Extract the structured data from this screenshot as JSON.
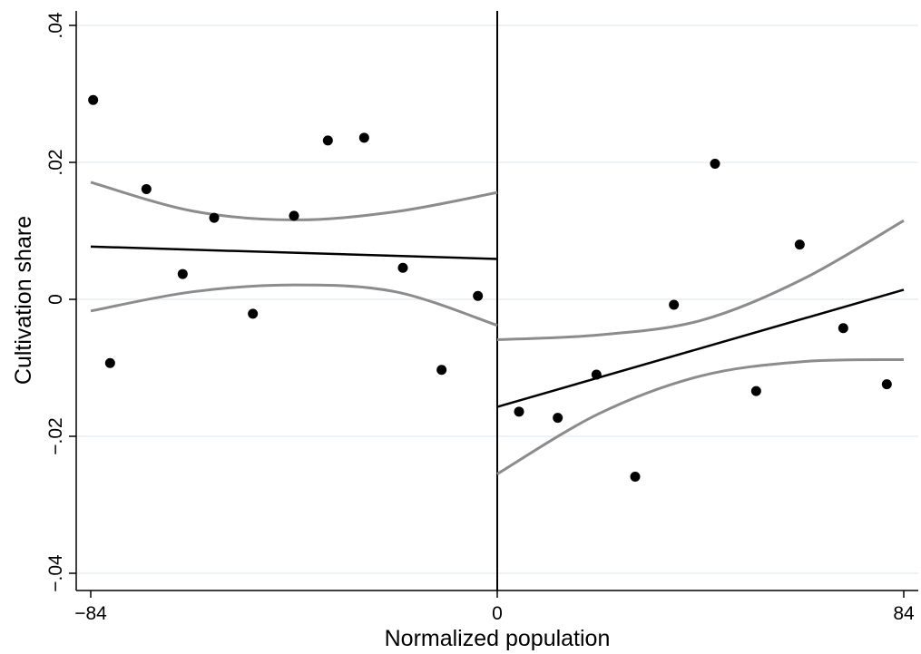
{
  "chart_data": {
    "type": "scatter",
    "title": "",
    "xlabel": "Normalized population",
    "ylabel": "Cultivation share",
    "xlim": [
      -84,
      84
    ],
    "ylim": [
      -0.04,
      0.04
    ],
    "x_ticks": [
      -84,
      0,
      84
    ],
    "x_tick_labels": [
      "−84",
      "0",
      "84"
    ],
    "y_ticks": [
      -0.04,
      -0.02,
      0,
      0.02,
      0.04
    ],
    "y_tick_labels": [
      "−.04",
      "−.02",
      "0",
      ".02",
      ".04"
    ],
    "grid": true,
    "cutoff_x": 0,
    "points": [
      {
        "x": -83.5,
        "y": 0.0291
      },
      {
        "x": -80,
        "y": -0.0093
      },
      {
        "x": -72.5,
        "y": 0.0161
      },
      {
        "x": -65,
        "y": 0.0037
      },
      {
        "x": -58.5,
        "y": 0.0119
      },
      {
        "x": -50.5,
        "y": -0.0021
      },
      {
        "x": -42,
        "y": 0.0122
      },
      {
        "x": -35,
        "y": 0.0232
      },
      {
        "x": -27.5,
        "y": 0.0236
      },
      {
        "x": -19.5,
        "y": 0.0046
      },
      {
        "x": -11.5,
        "y": -0.0103
      },
      {
        "x": -4,
        "y": 0.0005
      },
      {
        "x": 4.5,
        "y": -0.0164
      },
      {
        "x": 12.5,
        "y": -0.0173
      },
      {
        "x": 20.5,
        "y": -0.011
      },
      {
        "x": 28.5,
        "y": -0.0259
      },
      {
        "x": 36.5,
        "y": -0.0008
      },
      {
        "x": 45,
        "y": 0.0198
      },
      {
        "x": 53.5,
        "y": -0.0134
      },
      {
        "x": 62.5,
        "y": 0.008
      },
      {
        "x": 71.5,
        "y": -0.0042
      },
      {
        "x": 80.5,
        "y": -0.0124
      }
    ],
    "fits": [
      {
        "x": [
          -84,
          0
        ],
        "y": [
          0.0077,
          0.0059
        ]
      },
      {
        "x": [
          0,
          84
        ],
        "y": [
          -0.0157,
          0.0014
        ]
      }
    ],
    "ci_bands": [
      {
        "x": [
          -84,
          -63,
          -42,
          -21,
          0
        ],
        "upper": [
          0.0171,
          0.0129,
          0.0116,
          0.0128,
          0.0156
        ],
        "lower": [
          -0.0017,
          0.0011,
          0.0021,
          0.0011,
          -0.0038
        ]
      },
      {
        "x": [
          0,
          21,
          42,
          63,
          84
        ],
        "upper": [
          -0.0059,
          -0.0052,
          -0.0031,
          0.0029,
          0.0115
        ],
        "lower": [
          -0.0255,
          -0.0167,
          -0.0112,
          -0.0091,
          -0.0088
        ]
      }
    ]
  }
}
